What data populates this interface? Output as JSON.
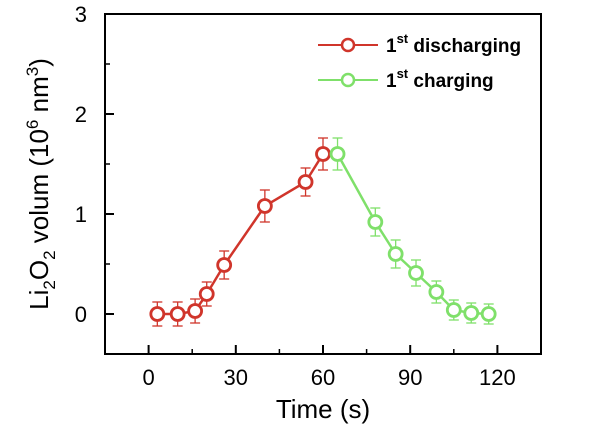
{
  "chart_data": {
    "type": "scatter",
    "xlabel": "Time (s)",
    "ylabel": {
      "base": "Li",
      "sub1": "2",
      "mid": "O",
      "sub2": "2",
      "rest": " volum (10",
      "sup1": "6",
      "unit": " nm",
      "sup2": "3",
      "close": ")"
    },
    "xlim": [
      -15,
      135
    ],
    "ylim": [
      -0.4,
      3
    ],
    "xticks": [
      "0",
      "30",
      "60",
      "90",
      "120"
    ],
    "yticks": [
      "0",
      "1",
      "2",
      "3"
    ],
    "grid": false,
    "legend_position": "top-right",
    "series": [
      {
        "name": {
          "pre": "1",
          "sup": "st",
          "post": " discharging"
        },
        "color": "#d0352b",
        "marker": "open-circle",
        "x": [
          3,
          10,
          16,
          20,
          26,
          40,
          54,
          60
        ],
        "y": [
          0.0,
          0.0,
          0.03,
          0.2,
          0.49,
          1.08,
          1.32,
          1.6
        ],
        "yerr": [
          0.12,
          0.12,
          0.12,
          0.12,
          0.14,
          0.16,
          0.14,
          0.16
        ]
      },
      {
        "name": {
          "pre": "1",
          "sup": "st",
          "post": " charging"
        },
        "color": "#7fe06a",
        "marker": "open-circle",
        "x": [
          65,
          78,
          85,
          92,
          99,
          105,
          111,
          117
        ],
        "y": [
          1.6,
          0.92,
          0.6,
          0.41,
          0.22,
          0.04,
          0.01,
          0.0
        ],
        "yerr": [
          0.16,
          0.14,
          0.14,
          0.13,
          0.11,
          0.1,
          0.1,
          0.1
        ]
      }
    ]
  }
}
